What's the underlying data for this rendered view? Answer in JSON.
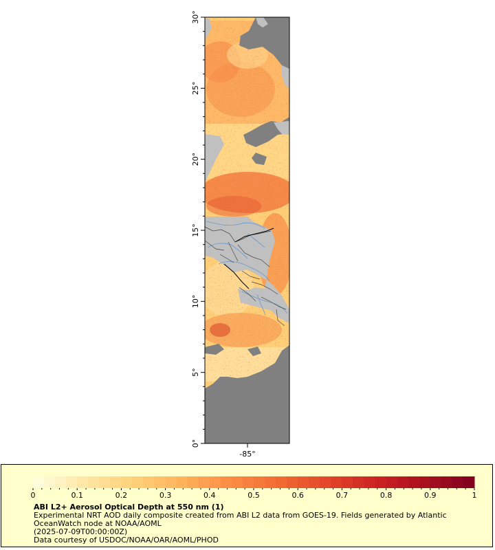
{
  "map": {
    "lat_ticks": [
      "0°",
      "5°",
      "10°",
      "15°",
      "20°",
      "25°",
      "30°"
    ],
    "lon_ticks": [
      "-85°"
    ],
    "lat_range": [
      0,
      30
    ],
    "colors": {
      "land": "#c0c0c0",
      "no_data": "#808080",
      "borders": "#333333",
      "rivers": "#6699cc"
    }
  },
  "legend": {
    "ticks": [
      "0",
      "0.1",
      "0.2",
      "0.3",
      "0.4",
      "0.5",
      "0.6",
      "0.7",
      "0.8",
      "0.9",
      "1"
    ],
    "range": [
      0,
      1
    ],
    "colorscale": [
      "#ffffe0",
      "#ffe8a8",
      "#ffd27a",
      "#ffb35c",
      "#fc8d45",
      "#f16c33",
      "#e3462a",
      "#cc2222",
      "#a8101e",
      "#800020"
    ],
    "title": "ABI L2+ Aerosol Optical Depth at 550 nm (1)",
    "desc_line1": "Experimental NRT AOD daily composite created from ABI L2 data from GOES-19. Fields generated by Atlantic",
    "desc_line2": "OceanWatch node at NOAA/AOML",
    "time": "(2025-07-09T00:00:00Z)",
    "credit": "Data courtesy of USDOC/NOAA/OAR/AOML/PHOD"
  }
}
